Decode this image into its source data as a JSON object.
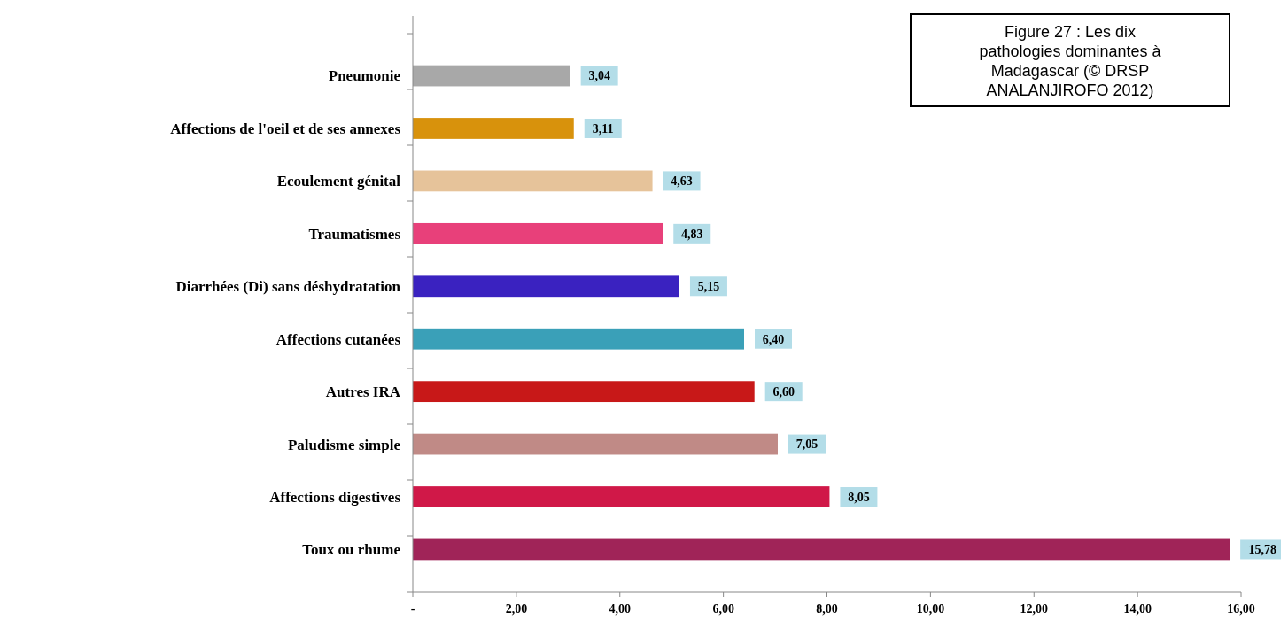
{
  "chart_data": {
    "type": "bar",
    "orientation": "horizontal",
    "title": "Figure 27 : Les dix pathologies dominantes à Madagascar (© DRSP ANALANJIROFO 2012)",
    "categories": [
      "Pneumonie",
      "Affections de l'oeil et de ses annexes",
      "Ecoulement génital",
      "Traumatismes",
      "Diarrhées (Di) sans déshydratation",
      "Affections cutanées",
      "Autres IRA",
      "Paludisme simple",
      "Affections digestives",
      "Toux ou rhume"
    ],
    "values": [
      3.04,
      3.11,
      4.63,
      4.83,
      5.15,
      6.4,
      6.6,
      7.05,
      8.05,
      15.78
    ],
    "colors": [
      "#a8a8a8",
      "#d8920c",
      "#e6c39a",
      "#e8407a",
      "#3a22c0",
      "#3aa0b8",
      "#c81818",
      "#c08a86",
      "#d01848",
      "#a02458"
    ],
    "value_labels": [
      "3,04",
      "3,11",
      "4,63",
      "4,83",
      "5,15",
      "6,40",
      "6,60",
      "7,05",
      "8,05",
      "15,78"
    ],
    "xlim": [
      0,
      16
    ],
    "xticks": [
      {
        "value": 0,
        "label": "-"
      },
      {
        "value": 2,
        "label": "2,00"
      },
      {
        "value": 4,
        "label": "4,00"
      },
      {
        "value": 6,
        "label": "6,00"
      },
      {
        "value": 8,
        "label": "8,00"
      },
      {
        "value": 10,
        "label": "10,00"
      },
      {
        "value": 12,
        "label": "12,00"
      },
      {
        "value": 14,
        "label": "14,00"
      },
      {
        "value": 16,
        "label": "16,00"
      }
    ],
    "grid": false
  }
}
